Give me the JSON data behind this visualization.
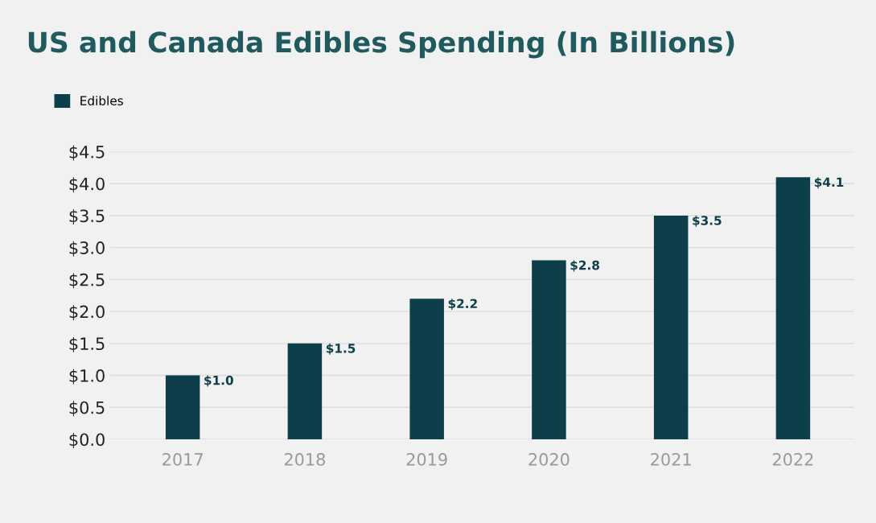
{
  "chart_data": {
    "type": "bar",
    "title": "US and Canada Edibles Spending (In Billions)",
    "categories": [
      "2017",
      "2018",
      "2019",
      "2020",
      "2021",
      "2022"
    ],
    "series": [
      {
        "name": "Edibles",
        "color": "#0d3f4a",
        "values": [
          1.0,
          1.5,
          2.2,
          2.8,
          3.5,
          4.1
        ]
      }
    ],
    "value_labels": [
      "$1.0",
      "$1.5",
      "$2.2",
      "$2.8",
      "$3.5",
      "$4.1"
    ],
    "ylim": [
      0,
      4.5
    ],
    "yticks": [
      {
        "value": 0,
        "label": "$0.0"
      },
      {
        "value": 0.5,
        "label": "$0.5"
      },
      {
        "value": 1.0,
        "label": "$1.0"
      },
      {
        "value": 1.5,
        "label": "$1.5"
      },
      {
        "value": 2.0,
        "label": "$2.0"
      },
      {
        "value": 2.5,
        "label": "$2.5"
      },
      {
        "value": 3.0,
        "label": "$3.0"
      },
      {
        "value": 3.5,
        "label": "$3.5"
      },
      {
        "value": 4.0,
        "label": "$4.0"
      },
      {
        "value": 4.5,
        "label": "$4.5"
      }
    ],
    "grid": "y",
    "legend": "top left"
  }
}
